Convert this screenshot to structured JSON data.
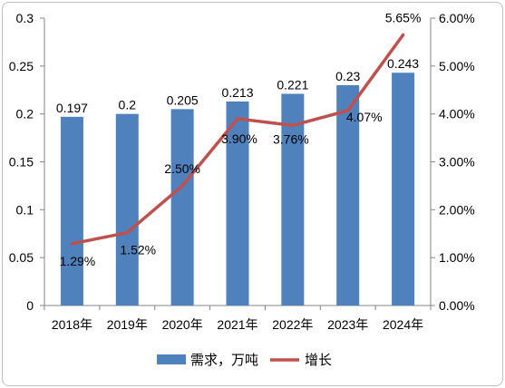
{
  "chart_data": {
    "type": "bar+line",
    "categories": [
      "2018年",
      "2019年",
      "2020年",
      "2021年",
      "2022年",
      "2023年",
      "2024年"
    ],
    "series": [
      {
        "name": "需求，万吨",
        "type": "bar",
        "axis": "left",
        "color": "#4F81BD",
        "values": [
          0.197,
          0.2,
          0.205,
          0.213,
          0.221,
          0.23,
          0.243
        ],
        "labels": [
          "0.197",
          "0.2",
          "0.205",
          "0.213",
          "0.221",
          "0.23",
          "0.243"
        ]
      },
      {
        "name": "增长",
        "type": "line",
        "axis": "right",
        "color": "#C0504D",
        "values": [
          1.29,
          1.52,
          2.5,
          3.9,
          3.76,
          4.07,
          5.65
        ],
        "labels": [
          "1.29%",
          "1.52%",
          "2.50%",
          "3.90%",
          "3.76%",
          "4.07%",
          "5.65%"
        ]
      }
    ],
    "y_left": {
      "min": 0,
      "max": 0.3,
      "ticks": [
        0,
        0.05,
        0.1,
        0.15,
        0.2,
        0.25,
        0.3
      ],
      "tick_labels": [
        "0",
        "0.05",
        "0.1",
        "0.15",
        "0.2",
        "0.25",
        "0.3"
      ]
    },
    "y_right": {
      "min": 0,
      "max": 6,
      "ticks": [
        0,
        1,
        2,
        3,
        4,
        5,
        6
      ],
      "tick_labels": [
        "0.00%",
        "1.00%",
        "2.00%",
        "3.00%",
        "4.00%",
        "5.00%",
        "6.00%"
      ]
    },
    "grid": false,
    "legend_position": "bottom"
  }
}
